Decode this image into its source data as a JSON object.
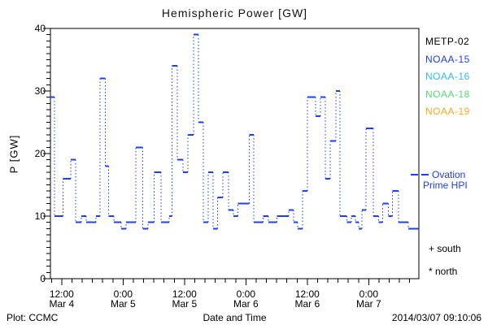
{
  "title": "Hemispheric Power [GW]",
  "footer": {
    "left": "Plot: CCMC",
    "right": "2014/03/07 09:10:06"
  },
  "chart_data": {
    "type": "line",
    "subtype": "step-function, solid horizontal dashes joined by dotted vertical connectors",
    "title": "Hemispheric Power [GW]",
    "xlabel": "Date and Time",
    "ylabel": "P [GW]",
    "ylim": [
      0,
      40
    ],
    "y_ticks": [
      0,
      10,
      20,
      30,
      40
    ],
    "y_minor_step": 1,
    "x_range_hours": 72,
    "x_ticks": [
      {
        "time": "12:00",
        "date": "Mar 4",
        "hour": 2.2
      },
      {
        "time": "0:00",
        "date": "Mar 5",
        "hour": 14.2
      },
      {
        "time": "12:00",
        "date": "Mar 5",
        "hour": 26.2
      },
      {
        "time": "0:00",
        "date": "Mar 6",
        "hour": 38.2
      },
      {
        "time": "12:00",
        "date": "Mar 6",
        "hour": 50.2
      },
      {
        "time": "0:00",
        "date": "Mar 7",
        "hour": 62.2
      }
    ],
    "x_minor_start": 0.2,
    "x_minor_step_hours": 2,
    "grid": false,
    "axis_color": "#000000",
    "line_color": "#2140e8",
    "series": [
      {
        "name": "NOAA-15",
        "color": "#2140e8",
        "segments_hours_value": [
          [
            0.0,
            0.8,
            29
          ],
          [
            0.8,
            2.5,
            10
          ],
          [
            2.5,
            4.0,
            16
          ],
          [
            4.0,
            4.9,
            19
          ],
          [
            4.9,
            6.0,
            9
          ],
          [
            6.0,
            7.0,
            10
          ],
          [
            7.0,
            8.9,
            9
          ],
          [
            8.9,
            9.7,
            10
          ],
          [
            9.7,
            10.7,
            32
          ],
          [
            10.7,
            11.4,
            18
          ],
          [
            11.4,
            12.4,
            10
          ],
          [
            12.4,
            13.8,
            9
          ],
          [
            13.8,
            14.8,
            8
          ],
          [
            14.8,
            16.7,
            9
          ],
          [
            16.7,
            18.0,
            21
          ],
          [
            18.0,
            19.1,
            8
          ],
          [
            19.1,
            20.3,
            9
          ],
          [
            20.3,
            21.6,
            17
          ],
          [
            21.6,
            23.2,
            9
          ],
          [
            23.2,
            23.8,
            10
          ],
          [
            23.8,
            24.8,
            34
          ],
          [
            24.8,
            25.9,
            19
          ],
          [
            25.9,
            26.9,
            17
          ],
          [
            26.9,
            28.0,
            23
          ],
          [
            28.0,
            28.9,
            39
          ],
          [
            28.9,
            29.9,
            25
          ],
          [
            29.9,
            30.8,
            9
          ],
          [
            30.8,
            31.8,
            17
          ],
          [
            31.8,
            32.7,
            8
          ],
          [
            32.7,
            33.7,
            13
          ],
          [
            33.7,
            34.8,
            17
          ],
          [
            34.8,
            35.8,
            11
          ],
          [
            35.8,
            36.6,
            10
          ],
          [
            36.6,
            38.9,
            12
          ],
          [
            38.9,
            39.7,
            23
          ],
          [
            39.7,
            41.6,
            9
          ],
          [
            41.6,
            42.6,
            10
          ],
          [
            42.6,
            44.3,
            9
          ],
          [
            44.3,
            46.6,
            10
          ],
          [
            46.6,
            47.5,
            11
          ],
          [
            47.5,
            48.3,
            9
          ],
          [
            48.3,
            49.3,
            8
          ],
          [
            49.3,
            50.2,
            14
          ],
          [
            50.2,
            51.8,
            29
          ],
          [
            51.8,
            52.8,
            26
          ],
          [
            52.8,
            53.7,
            29
          ],
          [
            53.7,
            54.7,
            16
          ],
          [
            54.7,
            55.8,
            22
          ],
          [
            55.8,
            56.6,
            30
          ],
          [
            56.6,
            57.9,
            10
          ],
          [
            57.9,
            58.8,
            9
          ],
          [
            58.8,
            59.6,
            10
          ],
          [
            59.6,
            60.2,
            9
          ],
          [
            60.2,
            60.9,
            8
          ],
          [
            60.9,
            61.7,
            11
          ],
          [
            61.7,
            63.1,
            24
          ],
          [
            63.1,
            64.1,
            10
          ],
          [
            64.1,
            64.9,
            9
          ],
          [
            64.9,
            66.0,
            12
          ],
          [
            66.0,
            66.8,
            10
          ],
          [
            66.8,
            68.0,
            14
          ],
          [
            68.0,
            69.9,
            9
          ],
          [
            69.9,
            72.0,
            8
          ]
        ]
      }
    ],
    "legend": [
      {
        "label": "METP-02",
        "color": "#000000"
      },
      {
        "label": "NOAA-15",
        "color": "#2140e8"
      },
      {
        "label": "NOAA-16",
        "color": "#33bbee"
      },
      {
        "label": "NOAA-18",
        "color": "#55dd77"
      },
      {
        "label": "NOAA-19",
        "color": "#ffaa22"
      }
    ],
    "ovation_label_line1": "Ovation",
    "ovation_label_line2": "Prime HPI",
    "ovation_color": "#2140e8",
    "markers": [
      {
        "symbol": "+",
        "label": "south"
      },
      {
        "symbol": "*",
        "label": "north"
      }
    ]
  }
}
